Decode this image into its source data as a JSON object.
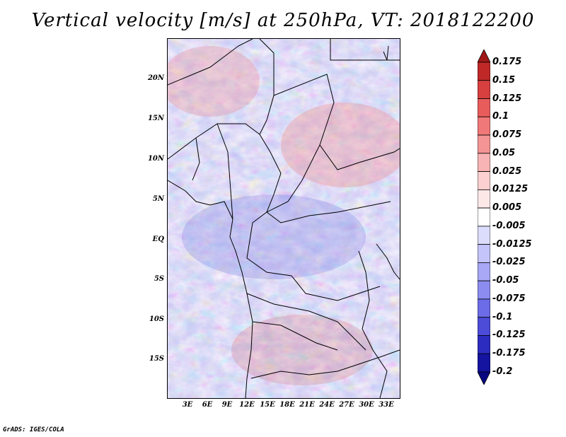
{
  "title": "Vertical velocity [m/s] at 250hPa, VT: 2018122200",
  "y_axis_labels": [
    "20N",
    "15N",
    "10N",
    "5N",
    "EQ",
    "5S",
    "10S",
    "15S"
  ],
  "x_axis_labels": [
    "3E",
    "6E",
    "9E",
    "12E",
    "15E",
    "18E",
    "21E",
    "24E",
    "27E",
    "30E",
    "33E"
  ],
  "colorbar": {
    "labels": [
      "0.175",
      "0.15",
      "0.125",
      "0.1",
      "0.075",
      "0.05",
      "0.025",
      "0.0125",
      "0.005",
      "-0.005",
      "-0.0125",
      "-0.025",
      "-0.05",
      "-0.075",
      "-0.1",
      "-0.125",
      "-0.175",
      "-0.2"
    ],
    "colors": [
      "#a01818",
      "#c02828",
      "#d84040",
      "#e85c5c",
      "#f07878",
      "#f49494",
      "#f8b4b4",
      "#fcd0d0",
      "#fde8e8",
      "#ffffff",
      "#dcdcfc",
      "#c4c4fa",
      "#a8a8f6",
      "#8c8cf0",
      "#6c6ce8",
      "#4c4cd8",
      "#2c2cc0",
      "#1414a0",
      "#080880"
    ]
  },
  "credit": "GrADS: IGES/COLA"
}
